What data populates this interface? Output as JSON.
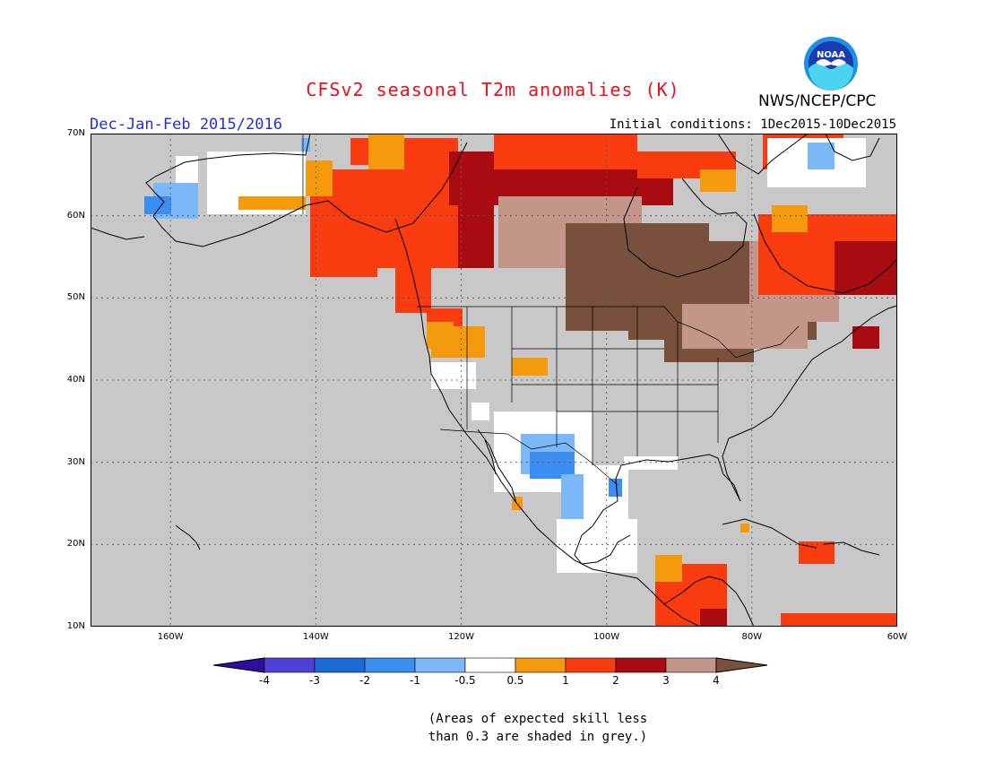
{
  "title": "CFSv2 seasonal T2m anomalies (K)",
  "season": "Dec-Jan-Feb 2015/2016",
  "initial_conditions": "Initial conditions: 1Dec2015-10Dec2015",
  "agency": "NWS/NCEP/CPC",
  "logo_text": "NOAA",
  "note_line1": "(Areas of expected skill less",
  "note_line2": "than 0.3 are shaded in grey.)",
  "map": {
    "extent": {
      "lon": [
        -171,
        -60
      ],
      "lat": [
        10,
        70
      ]
    },
    "lat_labels": [
      {
        "lat": 70,
        "text": "70N"
      },
      {
        "lat": 60,
        "text": "60N"
      },
      {
        "lat": 50,
        "text": "50N"
      },
      {
        "lat": 40,
        "text": "40N"
      },
      {
        "lat": 30,
        "text": "30N"
      },
      {
        "lat": 20,
        "text": "20N"
      },
      {
        "lat": 10,
        "text": "10N"
      }
    ],
    "lon_labels": [
      {
        "lon": -160,
        "text": "160W"
      },
      {
        "lon": -140,
        "text": "140W"
      },
      {
        "lon": -120,
        "text": "120W"
      },
      {
        "lon": -100,
        "text": "100W"
      },
      {
        "lon": -80,
        "text": "80W"
      },
      {
        "lon": -60,
        "text": "60W"
      }
    ],
    "grey_color": "#c8c8c8",
    "white_color": "#ffffff"
  },
  "legend": {
    "colors": [
      "#2d0ea0",
      "#5040d8",
      "#1a6ad8",
      "#3c8ef0",
      "#7ab8f8",
      "#ffffff",
      "#f59a0c",
      "#f83c10",
      "#a80c10",
      "#c4968a",
      "#78503c"
    ],
    "labels": [
      "-4",
      "-3",
      "-2",
      "-1",
      "-0.5",
      "0.5",
      "1",
      "2",
      "3",
      "4"
    ]
  }
}
